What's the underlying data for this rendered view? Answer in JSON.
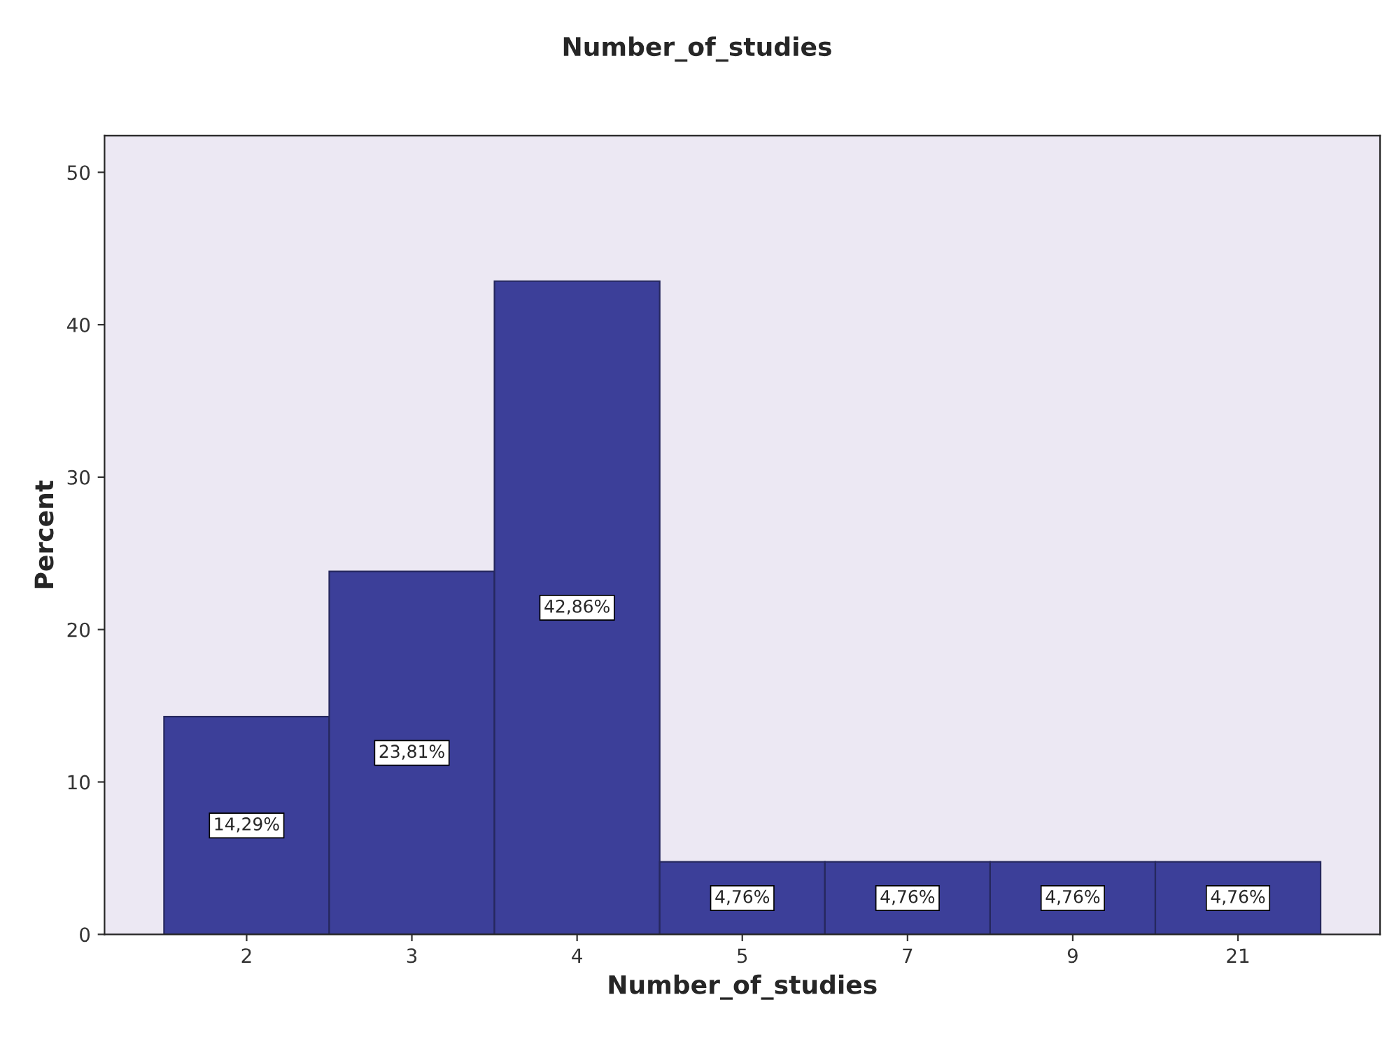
{
  "chart_data": {
    "type": "bar",
    "title": "Number_of_studies",
    "xlabel": "Number_of_studies",
    "ylabel": "Percent",
    "categories": [
      "2",
      "3",
      "4",
      "5",
      "7",
      "9",
      "21"
    ],
    "values": [
      14.29,
      23.81,
      42.86,
      4.76,
      4.76,
      4.76,
      4.76
    ],
    "value_labels": [
      "14,29%",
      "23,81%",
      "42,86%",
      "4,76%",
      "4,76%",
      "4,76%",
      "4,76%"
    ],
    "color": "#3c3f99",
    "ylim": [
      0,
      52.4
    ],
    "yticks": [
      0,
      10,
      20,
      30,
      40,
      50
    ],
    "grid": false,
    "legend": false
  }
}
